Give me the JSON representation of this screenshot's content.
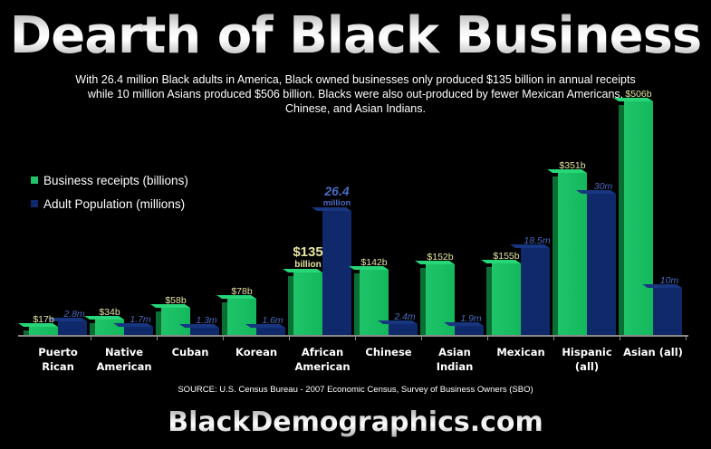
{
  "title": "Dearth of Black Business",
  "subtitle": "With 26.4 million Black adults in America, Black owned businesses only produced $135 billion in annual receipts while 10 million Asians produced $506 billion. Blacks were also out-produced by fewer Mexican Americans, Chinese, and Asian Indians.",
  "legend": [
    {
      "label": "Business receipts (billions)",
      "color": "#1fc46a"
    },
    {
      "label": "Adult Population (millions)",
      "color": "#10296b"
    }
  ],
  "source": "SOURCE: U.S. Census Bureau - 2007 Economic Census, Survey of Business Owners (SBO)",
  "brand": "BlackDemographics.com",
  "highlight": {
    "receipts_value": "$135",
    "receipts_unit": "billion",
    "population_value": "26.4",
    "population_unit": "million"
  },
  "chart_data": {
    "type": "bar",
    "title": "Dearth of Black Business",
    "xlabel": "",
    "ylabel": "",
    "grid": false,
    "legend_position": "left",
    "categories": [
      "Puerto Rican",
      "Native American",
      "Cuban",
      "Korean",
      "African American",
      "Chinese",
      "Asian Indian",
      "Mexican",
      "Hispanic (all)",
      "Asian (all)"
    ],
    "category_lines": [
      [
        "Puerto",
        "Rican"
      ],
      [
        "Native",
        "American"
      ],
      [
        "Cuban"
      ],
      [
        "Korean"
      ],
      [
        "African",
        "American"
      ],
      [
        "Chinese"
      ],
      [
        "Asian",
        "Indian"
      ],
      [
        "Mexican"
      ],
      [
        "Hispanic",
        "(all)"
      ],
      [
        "Asian (all)"
      ]
    ],
    "series": [
      {
        "name": "Business receipts (billions)",
        "color": "#1fc46a",
        "values": [
          17,
          34,
          58,
          78,
          135,
          142,
          152,
          155,
          351,
          506
        ],
        "labels": [
          "$17b",
          "$34b",
          "$58b",
          "$78b",
          "$135 billion",
          "$142b",
          "$152b",
          "$155b",
          "$351b",
          "$506b"
        ]
      },
      {
        "name": "Adult Population (millions)",
        "color": "#10296b",
        "values": [
          2.8,
          1.7,
          1.3,
          1.6,
          26.4,
          2.4,
          1.9,
          18.5,
          30,
          10
        ],
        "labels": [
          "2.8m",
          "1.7m",
          "1.3m",
          "1.6m",
          "26.4 million",
          "2.4m",
          "1.9m",
          "18.5m",
          "30m",
          "10m"
        ]
      }
    ]
  }
}
